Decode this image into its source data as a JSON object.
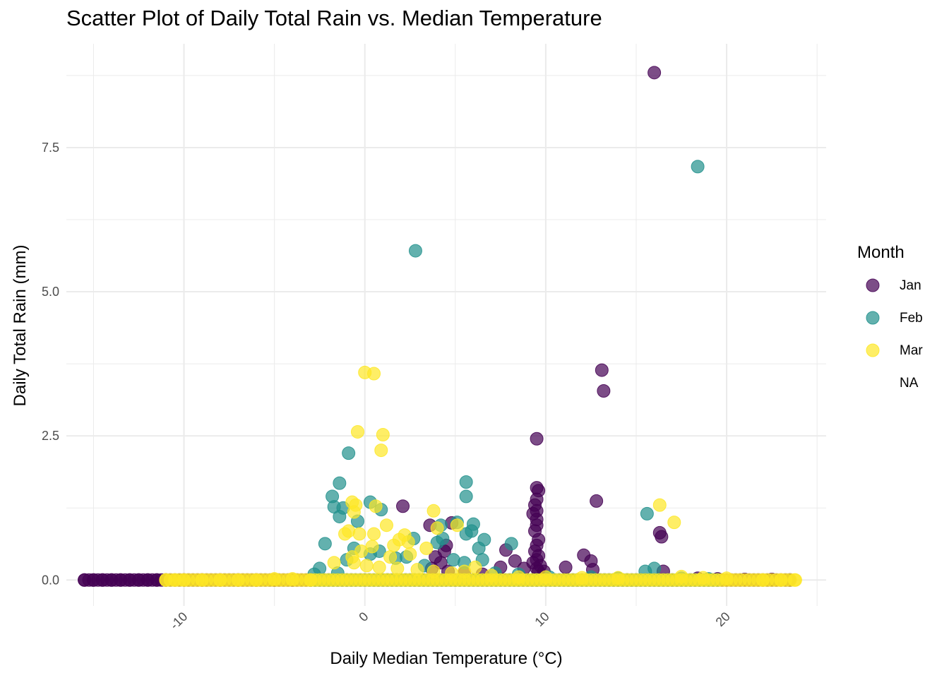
{
  "title": "Scatter Plot of Daily Total Rain vs. Median Temperature",
  "chart_data": {
    "type": "scatter",
    "title": "Scatter Plot of Daily Total Rain vs. Median Temperature",
    "xlabel": "Daily Median Temperature (°C)",
    "ylabel": "Daily Total Rain (mm)",
    "xlim": [
      -16.5,
      25.5
    ],
    "ylim": [
      -0.45,
      9.3
    ],
    "x_ticks": [
      -10,
      0,
      10,
      20
    ],
    "x_tick_labels": [
      "-10",
      "0",
      "10",
      "20"
    ],
    "x_tick_label_rotation_deg": 45,
    "y_ticks": [
      0.0,
      2.5,
      5.0,
      7.5
    ],
    "y_tick_labels": [
      "0.0",
      "2.5",
      "5.0",
      "7.5"
    ],
    "grid": true,
    "legend_position": "right",
    "legend_title": "Month",
    "point_opacity": 0.7,
    "series": [
      {
        "name": "Jan",
        "color": "#440154",
        "baseline_zero_x_range": [
          -15.5,
          23.5
        ],
        "points": [
          [
            16.0,
            8.8
          ],
          [
            13.1,
            3.64
          ],
          [
            13.2,
            3.28
          ],
          [
            9.5,
            2.45
          ],
          [
            9.5,
            1.6
          ],
          [
            9.6,
            1.55
          ],
          [
            9.5,
            1.4
          ],
          [
            9.4,
            1.3
          ],
          [
            9.5,
            1.2
          ],
          [
            9.3,
            1.15
          ],
          [
            9.5,
            1.05
          ],
          [
            9.5,
            0.95
          ],
          [
            9.4,
            0.85
          ],
          [
            9.6,
            0.7
          ],
          [
            9.5,
            0.6
          ],
          [
            9.4,
            0.5
          ],
          [
            9.6,
            0.42
          ],
          [
            9.5,
            0.35
          ],
          [
            9.3,
            0.3
          ],
          [
            9.7,
            0.25
          ],
          [
            9.5,
            0.2
          ],
          [
            9.6,
            0.15
          ],
          [
            12.8,
            1.37
          ],
          [
            16.3,
            0.82
          ],
          [
            16.4,
            0.75
          ],
          [
            12.1,
            0.43
          ],
          [
            12.5,
            0.33
          ],
          [
            16.5,
            0.15
          ],
          [
            2.1,
            1.28
          ],
          [
            4.8,
            0.99
          ],
          [
            3.6,
            0.95
          ],
          [
            4.5,
            0.6
          ],
          [
            4.4,
            0.5
          ],
          [
            3.9,
            0.4
          ],
          [
            4.2,
            0.3
          ],
          [
            3.7,
            0.2
          ],
          [
            4.6,
            0.15
          ],
          [
            7.8,
            0.52
          ],
          [
            8.3,
            0.33
          ],
          [
            7.5,
            0.22
          ],
          [
            8.8,
            0.2
          ],
          [
            9.9,
            0.15
          ],
          [
            11.1,
            0.22
          ],
          [
            12.6,
            0.18
          ],
          [
            5.5,
            0.12
          ],
          [
            6.5,
            0.1
          ],
          [
            -15.5,
            0.0
          ],
          [
            -15.0,
            0.0
          ],
          [
            -14.5,
            0.0
          ],
          [
            -14.0,
            0.0
          ],
          [
            -13.5,
            0.0
          ],
          [
            -13.0,
            0.0
          ],
          [
            -12.5,
            0.0
          ],
          [
            -12.0,
            0.0
          ],
          [
            -11.5,
            0.0
          ],
          [
            -11.0,
            0.0
          ],
          [
            -10.0,
            0.0
          ],
          [
            -9.0,
            0.0
          ],
          [
            -8.0,
            0.0
          ],
          [
            -7.0,
            0.0
          ],
          [
            -6.0,
            0.0
          ],
          [
            -5.0,
            0.0
          ],
          [
            -4.0,
            0.0
          ],
          [
            -3.0,
            0.0
          ],
          [
            18.4,
            0.03
          ],
          [
            19.5,
            0.02
          ],
          [
            21.0,
            0.01
          ],
          [
            22.5,
            0.01
          ],
          [
            23.5,
            0.0
          ]
        ]
      },
      {
        "name": "Feb",
        "color": "#21908C",
        "baseline_zero_x_range": [
          -3.0,
          19.5
        ],
        "points": [
          [
            18.4,
            7.17
          ],
          [
            2.8,
            5.71
          ],
          [
            -0.9,
            2.2
          ],
          [
            5.6,
            1.7
          ],
          [
            5.6,
            1.45
          ],
          [
            -1.4,
            1.68
          ],
          [
            -1.8,
            1.45
          ],
          [
            -1.7,
            1.27
          ],
          [
            -1.4,
            1.1
          ],
          [
            -1.2,
            1.25
          ],
          [
            0.3,
            1.35
          ],
          [
            0.9,
            1.22
          ],
          [
            -0.4,
            1.02
          ],
          [
            -2.2,
            0.63
          ],
          [
            2.7,
            0.72
          ],
          [
            4.2,
            0.95
          ],
          [
            4.3,
            0.72
          ],
          [
            4.0,
            0.65
          ],
          [
            5.1,
            1.0
          ],
          [
            6.0,
            0.97
          ],
          [
            5.6,
            0.8
          ],
          [
            5.9,
            0.85
          ],
          [
            6.6,
            0.7
          ],
          [
            6.3,
            0.55
          ],
          [
            6.5,
            0.35
          ],
          [
            8.1,
            0.63
          ],
          [
            15.6,
            1.15
          ],
          [
            16.0,
            0.2
          ],
          [
            15.5,
            0.15
          ],
          [
            4.9,
            0.35
          ],
          [
            5.5,
            0.3
          ],
          [
            2.3,
            0.4
          ],
          [
            1.7,
            0.38
          ],
          [
            0.8,
            0.5
          ],
          [
            0.3,
            0.45
          ],
          [
            -0.6,
            0.55
          ],
          [
            -1.0,
            0.35
          ],
          [
            -2.5,
            0.2
          ],
          [
            -2.8,
            0.1
          ],
          [
            3.3,
            0.25
          ],
          [
            7.2,
            0.12
          ],
          [
            8.5,
            0.1
          ],
          [
            10.2,
            0.05
          ],
          [
            12.5,
            0.05
          ],
          [
            14.0,
            0.03
          ],
          [
            17.5,
            0.03
          ],
          [
            19.0,
            0.02
          ],
          [
            -1.5,
            0.12
          ]
        ]
      },
      {
        "name": "Mar",
        "color": "#FDE725",
        "baseline_zero_x_range": [
          -11.0,
          23.8
        ],
        "points": [
          [
            0.0,
            3.6
          ],
          [
            0.5,
            3.58
          ],
          [
            -0.4,
            2.57
          ],
          [
            1.0,
            2.52
          ],
          [
            0.9,
            2.25
          ],
          [
            -0.7,
            1.35
          ],
          [
            -0.5,
            1.3
          ],
          [
            -0.6,
            1.18
          ],
          [
            0.6,
            1.28
          ],
          [
            3.8,
            1.2
          ],
          [
            16.3,
            1.3
          ],
          [
            17.1,
            1.0
          ],
          [
            5.1,
            0.95
          ],
          [
            1.2,
            0.95
          ],
          [
            4.0,
            0.9
          ],
          [
            -0.9,
            0.85
          ],
          [
            -0.3,
            0.8
          ],
          [
            -1.1,
            0.8
          ],
          [
            0.5,
            0.8
          ],
          [
            2.2,
            0.78
          ],
          [
            1.9,
            0.7
          ],
          [
            2.4,
            0.66
          ],
          [
            1.6,
            0.6
          ],
          [
            0.4,
            0.58
          ],
          [
            -0.2,
            0.5
          ],
          [
            -0.7,
            0.4
          ],
          [
            3.4,
            0.55
          ],
          [
            2.5,
            0.45
          ],
          [
            1.4,
            0.4
          ],
          [
            -0.6,
            0.3
          ],
          [
            -1.7,
            0.3
          ],
          [
            0.1,
            0.25
          ],
          [
            0.8,
            0.22
          ],
          [
            1.8,
            0.2
          ],
          [
            2.9,
            0.18
          ],
          [
            3.8,
            0.15
          ],
          [
            4.8,
            0.12
          ],
          [
            6.1,
            0.22
          ],
          [
            5.5,
            0.15
          ],
          [
            7.0,
            0.08
          ],
          [
            8.5,
            0.05
          ],
          [
            10.0,
            0.05
          ],
          [
            12.0,
            0.04
          ],
          [
            14.0,
            0.04
          ],
          [
            17.5,
            0.06
          ],
          [
            18.7,
            0.04
          ],
          [
            20.0,
            0.03
          ],
          [
            -11.0,
            0.0
          ],
          [
            -10.5,
            0.0
          ],
          [
            -10.0,
            0.0
          ],
          [
            -9.0,
            0.0
          ],
          [
            -8.0,
            0.0
          ],
          [
            -7.0,
            0.0
          ],
          [
            -6.0,
            0.0
          ],
          [
            -5.0,
            0.02
          ],
          [
            -4.0,
            0.02
          ],
          [
            -3.0,
            0.0
          ],
          [
            22.0,
            0.0
          ],
          [
            23.0,
            0.0
          ],
          [
            23.8,
            0.0
          ]
        ]
      }
    ],
    "legend_entries": [
      {
        "label": "Jan",
        "color": "#440154"
      },
      {
        "label": "Feb",
        "color": "#21908C"
      },
      {
        "label": "Mar",
        "color": "#FDE725"
      },
      {
        "label": "NA",
        "color": null
      }
    ]
  }
}
